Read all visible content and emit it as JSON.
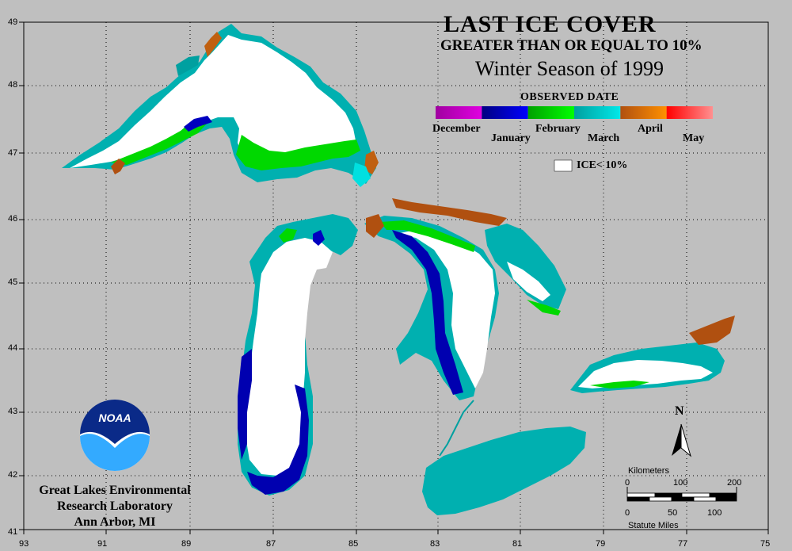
{
  "title": {
    "line1": "LAST ICE COVER",
    "line2": "GREATER THAN OR EQUAL TO 10%",
    "line3": "Winter Season of 1999"
  },
  "legend": {
    "heading": "OBSERVED DATE",
    "months": [
      "December",
      "January",
      "February",
      "March",
      "April",
      "May"
    ],
    "colors": {
      "December": [
        "#a000a0",
        "#e000e0"
      ],
      "January": [
        "#000080",
        "#0000ff"
      ],
      "February": [
        "#00a000",
        "#00ff00"
      ],
      "March": [
        "#00a0a0",
        "#00e8e8"
      ],
      "April": [
        "#b05010",
        "#ff9000"
      ],
      "May": [
        "#ff0000",
        "#ff9090"
      ]
    },
    "ice_lt10": "ICE< 10%"
  },
  "axes": {
    "lon_labels": [
      "93",
      "91",
      "89",
      "87",
      "85",
      "83",
      "81",
      "79",
      "77",
      "75"
    ],
    "lat_labels": [
      "49",
      "48",
      "47",
      "46",
      "45",
      "44",
      "43",
      "42",
      "41"
    ]
  },
  "scale": {
    "km_label": "Kilometers",
    "km_ticks": [
      "0",
      "100",
      "200"
    ],
    "mi_ticks": [
      "0",
      "50",
      "100"
    ],
    "mi_label": "Statute Miles"
  },
  "north_label": "N",
  "logo": {
    "text": "NOAA"
  },
  "credit": {
    "line1": "Great Lakes Environmental",
    "line2": "Research Laboratory",
    "line3": "Ann Arbor, MI"
  },
  "colors": {
    "background": "#bfbfbf",
    "ice_free": "#ffffff",
    "grid": "#000000"
  }
}
